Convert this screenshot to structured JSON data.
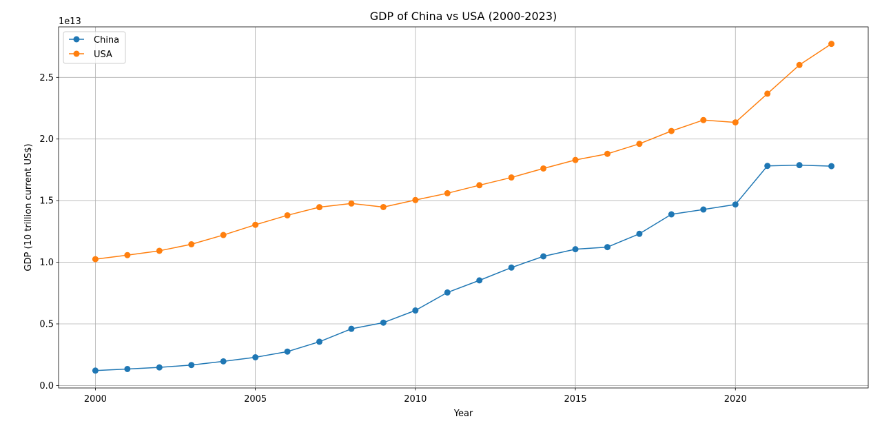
{
  "chart_data": {
    "type": "line",
    "title": "GDP of China vs USA (2000-2023)",
    "xlabel": "Year",
    "ylabel": "GDP (10 trillion current US$)",
    "y_offset_label": "1e13",
    "xlim": [
      1998.85,
      2024.15
    ],
    "ylim": [
      -0.02,
      2.91
    ],
    "xticks": [
      2000,
      2005,
      2010,
      2015,
      2020
    ],
    "xtick_labels": [
      "2000",
      "2005",
      "2010",
      "2015",
      "2020"
    ],
    "yticks": [
      0.0,
      0.5,
      1.0,
      1.5,
      2.0,
      2.5
    ],
    "ytick_labels": [
      "0.0",
      "0.5",
      "1.0",
      "1.5",
      "2.0",
      "2.5"
    ],
    "grid": true,
    "legend_position": "top-left",
    "x": [
      2000,
      2001,
      2002,
      2003,
      2004,
      2005,
      2006,
      2007,
      2008,
      2009,
      2010,
      2011,
      2012,
      2013,
      2014,
      2015,
      2016,
      2017,
      2018,
      2019,
      2020,
      2021,
      2022,
      2023
    ],
    "series": [
      {
        "name": "China",
        "color": "#1f77b4",
        "values": [
          0.121,
          0.134,
          0.147,
          0.166,
          0.196,
          0.229,
          0.275,
          0.355,
          0.46,
          0.51,
          0.609,
          0.755,
          0.853,
          0.957,
          1.048,
          1.106,
          1.123,
          1.231,
          1.389,
          1.428,
          1.469,
          1.782,
          1.788,
          1.78
        ]
      },
      {
        "name": "USA",
        "color": "#ff7f0e",
        "values": [
          1.025,
          1.058,
          1.093,
          1.146,
          1.221,
          1.304,
          1.381,
          1.447,
          1.477,
          1.448,
          1.505,
          1.56,
          1.625,
          1.688,
          1.761,
          1.83,
          1.88,
          1.961,
          2.065,
          2.154,
          2.135,
          2.368,
          2.601,
          2.772
        ]
      }
    ]
  }
}
